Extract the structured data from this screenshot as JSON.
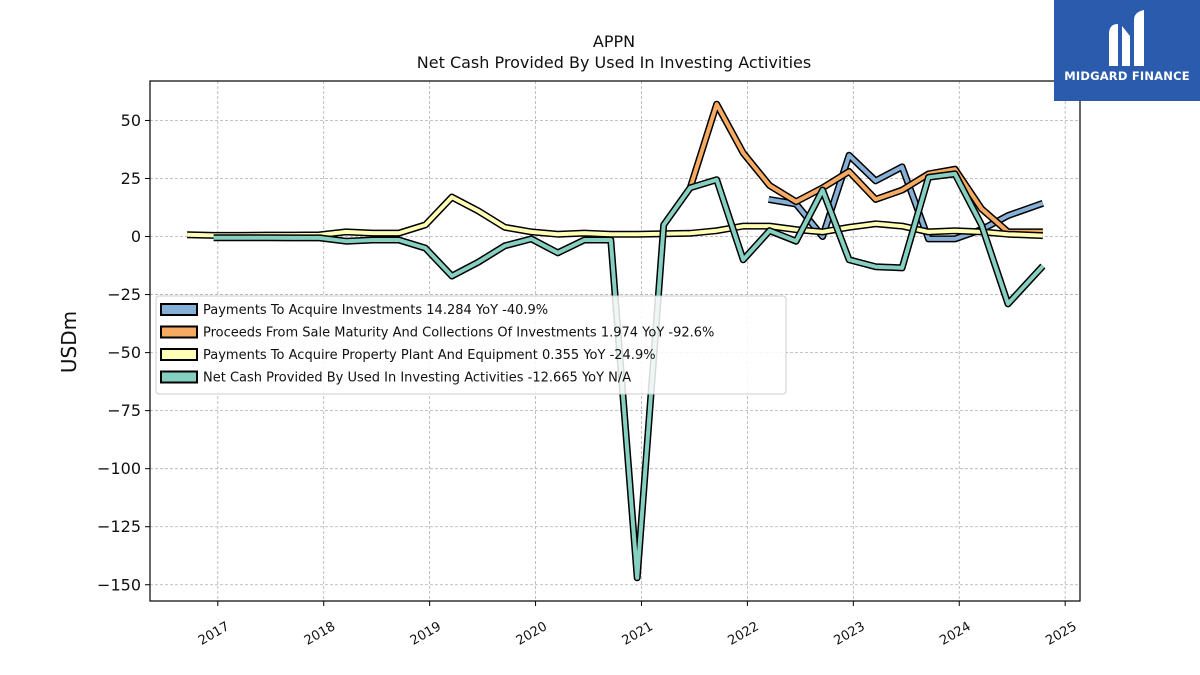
{
  "logo": {
    "text": "MIDGARD FINANCE"
  },
  "chart_data": {
    "type": "line",
    "title": "APPN",
    "subtitle": "Net Cash Provided By Used In Investing Activities",
    "ylabel": "USDm",
    "xlabel": "",
    "ylim": [
      -157,
      67
    ],
    "xlim": [
      2016.36,
      2025.14
    ],
    "yticks": [
      50,
      25,
      0,
      -25,
      -50,
      -75,
      -100,
      -125,
      -150
    ],
    "ytick_labels": [
      "50",
      "25",
      "0",
      "−25",
      "−50",
      "−75",
      "−100",
      "−125",
      "−150"
    ],
    "xticks": [
      2017,
      2018,
      2019,
      2020,
      2021,
      2022,
      2023,
      2024,
      2025
    ],
    "xtick_labels": [
      "2017",
      "2018",
      "2019",
      "2020",
      "2021",
      "2022",
      "2023",
      "2024",
      "2025"
    ],
    "grid": true,
    "legend_position": "center-left",
    "series": [
      {
        "name": "Payments To Acquire Investments",
        "legend": "Payments To Acquire Investments  14.284 YoY -40.9%",
        "color": "#86b0d6",
        "x": [
          2022.2,
          2022.46,
          2022.71,
          2022.96,
          2023.21,
          2023.46,
          2023.71,
          2023.96,
          2024.21,
          2024.46,
          2024.79
        ],
        "y": [
          16,
          14,
          0,
          35,
          24,
          30,
          -1,
          -1,
          3,
          9,
          14.3
        ]
      },
      {
        "name": "Proceeds From Sale Maturity And Collections Of Investments",
        "legend": "Proceeds From Sale Maturity And Collections Of Investments  1.974 YoY -92.6%",
        "color": "#f6aa62",
        "x": [
          2021.46,
          2021.71,
          2021.96,
          2022.21,
          2022.46,
          2022.71,
          2022.96,
          2023.21,
          2023.46,
          2023.71,
          2023.96,
          2024.21,
          2024.46,
          2024.79
        ],
        "y": [
          21,
          57,
          36,
          22,
          15,
          21,
          28,
          16,
          20,
          27,
          29,
          12,
          2,
          2
        ]
      },
      {
        "name": "Payments To Acquire Property Plant And Equipment",
        "legend": "Payments To Acquire Property Plant And Equipment  0.355 YoY -24.9%",
        "color": "#ffffb5",
        "x": [
          2016.71,
          2016.96,
          2017.21,
          2017.46,
          2017.71,
          2017.96,
          2018.21,
          2018.46,
          2018.71,
          2018.96,
          2019.21,
          2019.46,
          2019.71,
          2019.96,
          2020.21,
          2020.46,
          2020.71,
          2020.96,
          2021.21,
          2021.46,
          2021.71,
          2021.96,
          2022.21,
          2022.46,
          2022.71,
          2022.96,
          2023.21,
          2023.46,
          2023.71,
          2023.96,
          2024.21,
          2024.46,
          2024.79
        ],
        "y": [
          0.8,
          0.5,
          0.5,
          0.6,
          0.6,
          0.7,
          2,
          1.5,
          1.5,
          5,
          17,
          11,
          4,
          2,
          1,
          1.5,
          1,
          1,
          1.2,
          1.4,
          2.5,
          4.5,
          4.5,
          3,
          2,
          4,
          5.5,
          4.5,
          2,
          2.5,
          2,
          1,
          0.4
        ]
      },
      {
        "name": "Net Cash Provided By Used In Investing Activities",
        "legend": "Net Cash Provided By Used In Investing Activities  -12.665 YoY N/A",
        "color": "#86d0c2",
        "x": [
          2016.96,
          2017.21,
          2017.46,
          2017.71,
          2017.96,
          2018.21,
          2018.46,
          2018.71,
          2018.96,
          2019.21,
          2019.46,
          2019.71,
          2019.96,
          2020.21,
          2020.46,
          2020.71,
          2020.96,
          2021.21,
          2021.46,
          2021.71,
          2021.96,
          2022.21,
          2022.46,
          2022.71,
          2022.96,
          2023.21,
          2023.46,
          2023.71,
          2023.96,
          2024.21,
          2024.46,
          2024.79
        ],
        "y": [
          -0.5,
          -0.5,
          -0.5,
          -0.6,
          -0.6,
          -2,
          -1.5,
          -1.5,
          -5,
          -17,
          -11,
          -4,
          -1,
          -7,
          -1.5,
          -1.5,
          -147,
          5,
          21,
          24.5,
          -10,
          2.5,
          -2,
          20,
          -10,
          -13,
          -13.5,
          25.5,
          27,
          5,
          -29,
          -12.7
        ]
      }
    ]
  }
}
